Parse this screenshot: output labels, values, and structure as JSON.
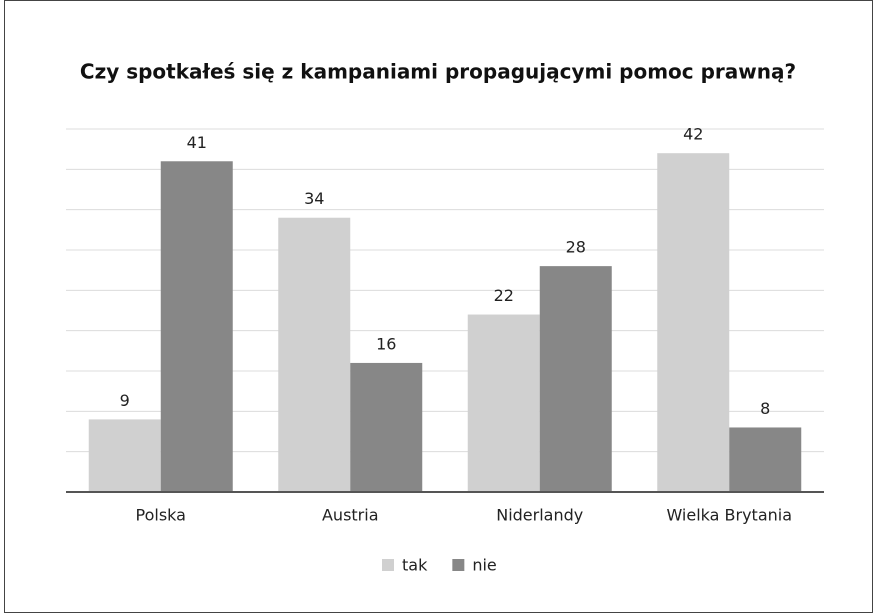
{
  "chart_data": {
    "type": "bar",
    "title": "Czy spotkałeś się z kampaniami propagującymi pomoc prawną?",
    "categories": [
      "Polska",
      "Austria",
      "Niderlandy",
      "Wielka Brytania"
    ],
    "series": [
      {
        "name": "tak",
        "color": "#d0d0d0",
        "values": [
          9,
          34,
          22,
          42
        ]
      },
      {
        "name": "nie",
        "color": "#878787",
        "values": [
          41,
          16,
          28,
          8
        ]
      }
    ],
    "ylim": [
      0,
      45
    ],
    "yticks": [
      0,
      5,
      10,
      15,
      20,
      25,
      30,
      35,
      40,
      45
    ],
    "grid": true,
    "legend": "bottom"
  }
}
